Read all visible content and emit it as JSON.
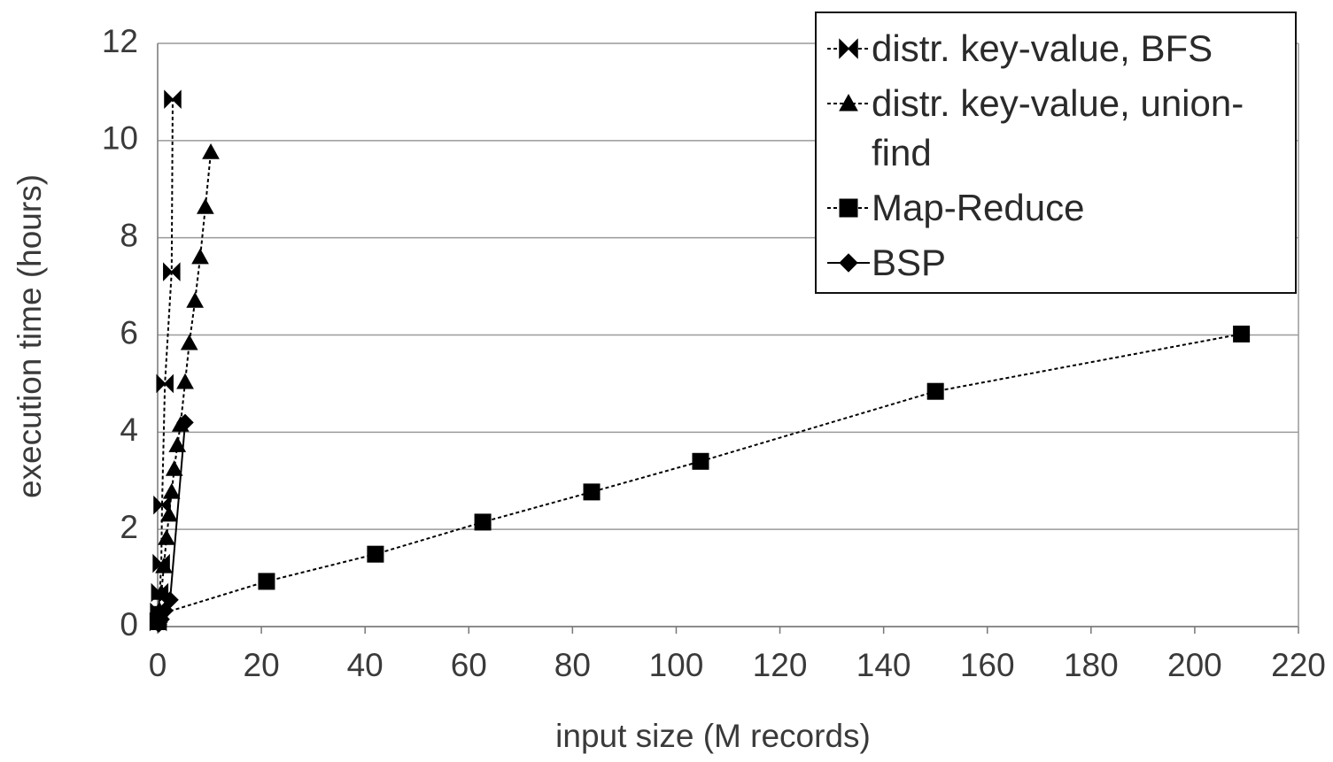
{
  "chart_data": {
    "type": "line",
    "x_label": "input size (M records)",
    "y_label": "execution time (hours)",
    "xlim": [
      0,
      220
    ],
    "xticks": [
      0,
      20,
      40,
      60,
      80,
      100,
      120,
      140,
      160,
      180,
      200,
      220
    ],
    "ylim": [
      0,
      12
    ],
    "yticks": [
      0,
      2,
      4,
      6,
      8,
      10,
      12
    ],
    "grid": true,
    "legend": "top-right",
    "series": [
      {
        "name": "distr. key-value, BFS",
        "color": "#000000",
        "marker": "bowtie",
        "dashed": true,
        "x": [
          0.1,
          0.2,
          0.4,
          0.7,
          0.85,
          1.4,
          2.7,
          2.9
        ],
        "values": [
          0.1,
          0.3,
          0.7,
          1.3,
          2.5,
          5.0,
          7.3,
          10.85
        ]
      },
      {
        "name": "distr. key-value, union-find",
        "color": "#000000",
        "marker": "triangle",
        "dashed": true,
        "x": [
          0.15,
          0.3,
          0.7,
          1.2,
          1.7,
          2.2,
          2.7,
          3.2,
          3.8,
          4.4,
          5.3,
          6.1,
          7.2,
          8.2,
          9.2,
          10.25
        ],
        "values": [
          0.15,
          0.33,
          0.69,
          1.24,
          1.82,
          2.3,
          2.77,
          3.24,
          3.73,
          4.15,
          5.03,
          5.83,
          6.7,
          7.6,
          8.63,
          9.76
        ]
      },
      {
        "name": "Map-Reduce",
        "color": "#000000",
        "marker": "square",
        "dashed": true,
        "x": [
          0.1,
          0.3,
          21,
          42,
          62.7,
          83.7,
          104.7,
          150,
          209
        ],
        "values": [
          0.1,
          0.25,
          0.93,
          1.49,
          2.15,
          2.77,
          3.4,
          4.84,
          6.02
        ]
      },
      {
        "name": "BSP",
        "color": "#000000",
        "marker": "diamond",
        "dashed": false,
        "x": [
          0.2,
          0.7,
          1.4,
          2.4,
          5.3
        ],
        "values": [
          0.05,
          0.15,
          0.33,
          0.55,
          4.2
        ]
      }
    ]
  }
}
